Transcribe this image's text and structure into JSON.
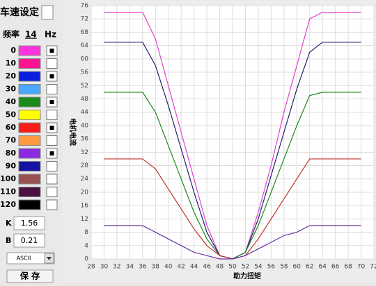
{
  "panel": {
    "title": "车速设定",
    "freq_label": "频率",
    "freq_value": "14",
    "freq_unit": "Hz",
    "rows": [
      {
        "label": "0",
        "color": "#ff33dd",
        "checked": true
      },
      {
        "label": "10",
        "color": "#ff1493",
        "checked": false
      },
      {
        "label": "20",
        "color": "#0a1ee0",
        "checked": true
      },
      {
        "label": "30",
        "color": "#4aa8ff",
        "checked": false
      },
      {
        "label": "40",
        "color": "#1a8a1a",
        "checked": true
      },
      {
        "label": "50",
        "color": "#ffff00",
        "checked": false
      },
      {
        "label": "60",
        "color": "#ff1a1a",
        "checked": true
      },
      {
        "label": "70",
        "color": "#ff9a40",
        "checked": false
      },
      {
        "label": "80",
        "color": "#8a2be2",
        "checked": true
      },
      {
        "label": "90",
        "color": "#1414a0",
        "checked": false
      },
      {
        "label": "100",
        "color": "#9a5050",
        "checked": false
      },
      {
        "label": "110",
        "color": "#4a1040",
        "checked": false
      },
      {
        "label": "120",
        "color": "#000000",
        "checked": false
      }
    ],
    "k_label": "K",
    "k_value": "1.56",
    "b_label": "B",
    "b_value": "0.21",
    "format": "ASCII",
    "save": "保 存"
  },
  "chart_data": {
    "type": "line",
    "x_label": "助力扭矩",
    "y_label": "电机电流",
    "x": [
      30,
      32,
      34,
      36,
      38,
      40,
      42,
      44,
      46,
      48,
      50,
      52,
      54,
      56,
      58,
      60,
      62,
      64,
      66,
      68,
      70
    ],
    "series": [
      {
        "color": "#e040d0",
        "values": [
          74,
          74,
          74,
          74,
          66,
          52,
          38,
          24,
          10,
          1,
          0,
          2,
          14,
          28,
          44,
          58,
          72,
          74,
          74,
          74,
          74
        ]
      },
      {
        "color": "#202070",
        "values": [
          65,
          65,
          65,
          65,
          58,
          46,
          33,
          20,
          8,
          1,
          0,
          2,
          12,
          25,
          38,
          51,
          62,
          65,
          65,
          65,
          65
        ]
      },
      {
        "color": "#1a8a1a",
        "values": [
          50,
          50,
          50,
          50,
          44,
          34,
          24,
          14,
          6,
          1,
          0,
          2,
          10,
          20,
          30,
          40,
          49,
          50,
          50,
          50,
          50
        ]
      },
      {
        "color": "#c03030",
        "values": [
          30,
          30,
          30,
          30,
          27,
          21,
          15,
          9,
          4,
          1,
          0,
          1,
          6,
          12,
          18,
          24,
          30,
          30,
          30,
          30,
          30
        ]
      },
      {
        "color": "#6a30a0",
        "values": [
          10,
          10,
          10,
          10,
          8,
          6,
          4,
          2,
          1,
          0,
          0,
          1,
          3,
          5,
          7,
          8,
          10,
          10,
          10,
          10,
          10
        ]
      }
    ],
    "xlim": [
      28,
      72
    ],
    "xticks": [
      28,
      30,
      32,
      34,
      36,
      38,
      40,
      42,
      44,
      46,
      48,
      50,
      52,
      54,
      56,
      58,
      60,
      62,
      64,
      66,
      68,
      70,
      72
    ],
    "ylim": [
      0,
      76
    ],
    "yticks": [
      0,
      4,
      8,
      12,
      16,
      20,
      24,
      28,
      32,
      36,
      40,
      44,
      48,
      52,
      56,
      60,
      64,
      68,
      72,
      76
    ],
    "grid": true
  }
}
